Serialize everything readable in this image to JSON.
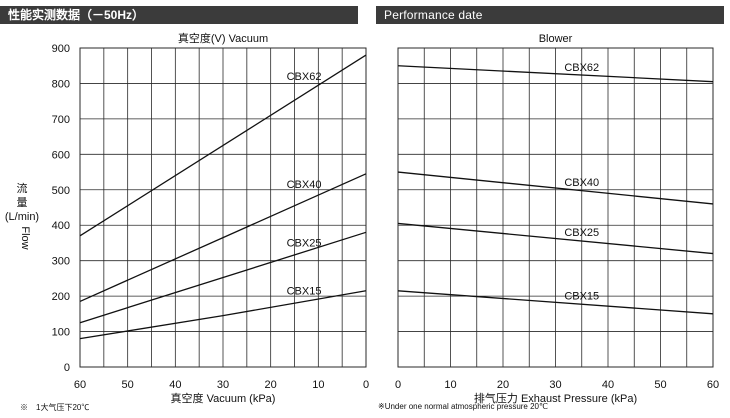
{
  "header_left": "性能实测数据（－50Hz）",
  "header_right": "Performance date",
  "note_left": "※　1大气压下20℃",
  "note_right": "※Under one normal atmospheric pressure 20℃",
  "chart_data": [
    {
      "type": "line",
      "title": "真空度(V) Vacuum",
      "xlabel": "真空度 Vacuum (kPa)",
      "ylabel": "流量(L/min) Flow",
      "ylabel_lines": [
        "流",
        "量",
        "(L/min)",
        "Flow"
      ],
      "x_ticks": [
        60,
        50,
        40,
        30,
        20,
        10,
        0
      ],
      "y_ticks": [
        0,
        100,
        200,
        300,
        400,
        500,
        600,
        700,
        800,
        900
      ],
      "xlim": [
        60,
        0
      ],
      "ylim": [
        0,
        900
      ],
      "x_reversed": true,
      "grid": true,
      "series": [
        {
          "name": "CBX62",
          "x": [
            60,
            0
          ],
          "y": [
            370,
            880
          ],
          "label_at": [
            13,
            810
          ]
        },
        {
          "name": "CBX40",
          "x": [
            60,
            0
          ],
          "y": [
            185,
            545
          ],
          "label_at": [
            13,
            505
          ]
        },
        {
          "name": "CBX25",
          "x": [
            60,
            0
          ],
          "y": [
            125,
            380
          ],
          "label_at": [
            13,
            340
          ]
        },
        {
          "name": "CBX15",
          "x": [
            60,
            30,
            0
          ],
          "y": [
            80,
            145,
            215
          ],
          "label_at": [
            13,
            205
          ]
        }
      ]
    },
    {
      "type": "line",
      "title": "Blower",
      "xlabel": "排气压力  Exhaust Pressure (kPa)",
      "x_ticks": [
        0,
        10,
        20,
        30,
        40,
        50,
        60
      ],
      "xlim": [
        0,
        60
      ],
      "ylim": [
        0,
        900
      ],
      "x_reversed": false,
      "grid": true,
      "series": [
        {
          "name": "CBX62",
          "x": [
            0,
            60
          ],
          "y": [
            850,
            805
          ],
          "label_at": [
            35,
            835
          ]
        },
        {
          "name": "CBX40",
          "x": [
            0,
            60
          ],
          "y": [
            550,
            460
          ],
          "label_at": [
            35,
            510
          ]
        },
        {
          "name": "CBX25",
          "x": [
            0,
            60
          ],
          "y": [
            405,
            320
          ],
          "label_at": [
            35,
            370
          ]
        },
        {
          "name": "CBX15",
          "x": [
            0,
            60
          ],
          "y": [
            215,
            150
          ],
          "label_at": [
            35,
            190
          ]
        }
      ]
    }
  ]
}
